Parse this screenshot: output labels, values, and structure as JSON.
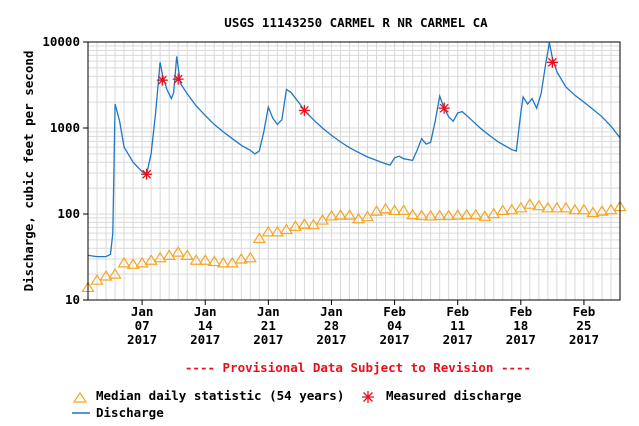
{
  "chart_data": {
    "type": "line",
    "title": "USGS 11143250 CARMEL R NR CARMEL CA",
    "ylabel": "Discharge, cubic feet per second",
    "xlabel": "",
    "y_scale": "log",
    "ylim": [
      10,
      10000
    ],
    "xlim": [
      "2017-01-01",
      "2017-03-01"
    ],
    "y_ticks": [
      {
        "value": 10,
        "label": "10"
      },
      {
        "value": 100,
        "label": "100"
      },
      {
        "value": 1000,
        "label": "1000"
      },
      {
        "value": 10000,
        "label": "10000"
      }
    ],
    "x_ticks": [
      {
        "date": "2017-01-07",
        "line1": "Jan",
        "line2": "07",
        "line3": "2017"
      },
      {
        "date": "2017-01-14",
        "line1": "Jan",
        "line2": "14",
        "line3": "2017"
      },
      {
        "date": "2017-01-21",
        "line1": "Jan",
        "line2": "21",
        "line3": "2017"
      },
      {
        "date": "2017-01-28",
        "line1": "Jan",
        "line2": "28",
        "line3": "2017"
      },
      {
        "date": "2017-02-04",
        "line1": "Feb",
        "line2": "04",
        "line3": "2017"
      },
      {
        "date": "2017-02-11",
        "line1": "Feb",
        "line2": "11",
        "line3": "2017"
      },
      {
        "date": "2017-02-18",
        "line1": "Feb",
        "line2": "18",
        "line3": "2017"
      },
      {
        "date": "2017-02-25",
        "line1": "Feb",
        "line2": "25",
        "line3": "2017"
      }
    ],
    "grid": true,
    "annotation": "---- Provisional Data Subject to Revision ----",
    "series": [
      {
        "name": "Discharge",
        "kind": "line",
        "color": "#1f77c6",
        "points": [
          [
            "2017-01-01 00:00",
            33
          ],
          [
            "2017-01-02 00:00",
            32
          ],
          [
            "2017-01-03 00:00",
            32
          ],
          [
            "2017-01-03 12:00",
            34
          ],
          [
            "2017-01-03 18:00",
            60
          ],
          [
            "2017-01-04 00:00",
            1900
          ],
          [
            "2017-01-04 12:00",
            1200
          ],
          [
            "2017-01-05 00:00",
            600
          ],
          [
            "2017-01-06 00:00",
            400
          ],
          [
            "2017-01-07 00:00",
            310
          ],
          [
            "2017-01-07 12:00",
            290
          ],
          [
            "2017-01-08 00:00",
            500
          ],
          [
            "2017-01-08 12:00",
            1500
          ],
          [
            "2017-01-09 00:00",
            5800
          ],
          [
            "2017-01-09 06:00",
            4200
          ],
          [
            "2017-01-09 18:00",
            2800
          ],
          [
            "2017-01-10 06:00",
            2200
          ],
          [
            "2017-01-10 12:00",
            2600
          ],
          [
            "2017-01-10 20:00",
            6800
          ],
          [
            "2017-01-11 06:00",
            3300
          ],
          [
            "2017-01-12 00:00",
            2500
          ],
          [
            "2017-01-13 00:00",
            1800
          ],
          [
            "2017-01-14 00:00",
            1400
          ],
          [
            "2017-01-15 00:00",
            1100
          ],
          [
            "2017-01-16 00:00",
            900
          ],
          [
            "2017-01-17 00:00",
            750
          ],
          [
            "2017-01-18 00:00",
            630
          ],
          [
            "2017-01-19 00:00",
            550
          ],
          [
            "2017-01-19 12:00",
            500
          ],
          [
            "2017-01-20 00:00",
            540
          ],
          [
            "2017-01-20 12:00",
            900
          ],
          [
            "2017-01-21 00:00",
            1750
          ],
          [
            "2017-01-21 12:00",
            1300
          ],
          [
            "2017-01-22 00:00",
            1100
          ],
          [
            "2017-01-22 12:00",
            1250
          ],
          [
            "2017-01-23 00:00",
            2800
          ],
          [
            "2017-01-23 12:00",
            2600
          ],
          [
            "2017-01-24 12:00",
            1900
          ],
          [
            "2017-01-25 00:00",
            1600
          ],
          [
            "2017-01-26 00:00",
            1250
          ],
          [
            "2017-01-27 00:00",
            1000
          ],
          [
            "2017-01-28 00:00",
            820
          ],
          [
            "2017-01-29 00:00",
            690
          ],
          [
            "2017-01-30 00:00",
            590
          ],
          [
            "2017-01-31 00:00",
            520
          ],
          [
            "2017-02-01 00:00",
            460
          ],
          [
            "2017-02-02 00:00",
            420
          ],
          [
            "2017-02-03 00:00",
            385
          ],
          [
            "2017-02-03 12:00",
            370
          ],
          [
            "2017-02-04 00:00",
            450
          ],
          [
            "2017-02-04 12:00",
            470
          ],
          [
            "2017-02-05 00:00",
            440
          ],
          [
            "2017-02-06 00:00",
            420
          ],
          [
            "2017-02-06 12:00",
            550
          ],
          [
            "2017-02-07 00:00",
            750
          ],
          [
            "2017-02-07 12:00",
            650
          ],
          [
            "2017-02-08 00:00",
            680
          ],
          [
            "2017-02-08 12:00",
            1200
          ],
          [
            "2017-02-09 00:00",
            2350
          ],
          [
            "2017-02-09 12:00",
            1700
          ],
          [
            "2017-02-10 00:00",
            1350
          ],
          [
            "2017-02-10 12:00",
            1200
          ],
          [
            "2017-02-11 00:00",
            1500
          ],
          [
            "2017-02-11 12:00",
            1550
          ],
          [
            "2017-02-12 12:00",
            1250
          ],
          [
            "2017-02-13 12:00",
            1000
          ],
          [
            "2017-02-14 12:00",
            820
          ],
          [
            "2017-02-15 12:00",
            690
          ],
          [
            "2017-02-16 12:00",
            600
          ],
          [
            "2017-02-17 00:00",
            560
          ],
          [
            "2017-02-17 12:00",
            540
          ],
          [
            "2017-02-18 00:00",
            1500
          ],
          [
            "2017-02-18 06:00",
            2300
          ],
          [
            "2017-02-18 18:00",
            1900
          ],
          [
            "2017-02-19 06:00",
            2200
          ],
          [
            "2017-02-19 18:00",
            1700
          ],
          [
            "2017-02-20 06:00",
            2500
          ],
          [
            "2017-02-20 18:00",
            5500
          ],
          [
            "2017-02-21 04:00",
            9800
          ],
          [
            "2017-02-21 12:00",
            6500
          ],
          [
            "2017-02-22 00:00",
            4500
          ],
          [
            "2017-02-23 00:00",
            3000
          ],
          [
            "2017-02-24 00:00",
            2400
          ],
          [
            "2017-02-25 00:00",
            2000
          ],
          [
            "2017-02-26 00:00",
            1650
          ],
          [
            "2017-02-27 00:00",
            1350
          ],
          [
            "2017-02-28 00:00",
            1050
          ],
          [
            "2017-03-01 00:00",
            770
          ]
        ]
      },
      {
        "name": "Median daily statistic (54 years)",
        "kind": "marker",
        "marker": "triangle",
        "color": "#f5a623",
        "points": [
          [
            "2017-01-01",
            14
          ],
          [
            "2017-01-02",
            17
          ],
          [
            "2017-01-03",
            19
          ],
          [
            "2017-01-04",
            20
          ],
          [
            "2017-01-05",
            27
          ],
          [
            "2017-01-06",
            26
          ],
          [
            "2017-01-07",
            27
          ],
          [
            "2017-01-08",
            29
          ],
          [
            "2017-01-09",
            31
          ],
          [
            "2017-01-10",
            33
          ],
          [
            "2017-01-11",
            36
          ],
          [
            "2017-01-12",
            33
          ],
          [
            "2017-01-13",
            29
          ],
          [
            "2017-01-14",
            29
          ],
          [
            "2017-01-15",
            28
          ],
          [
            "2017-01-16",
            27
          ],
          [
            "2017-01-17",
            27
          ],
          [
            "2017-01-18",
            30
          ],
          [
            "2017-01-19",
            31
          ],
          [
            "2017-01-20",
            52
          ],
          [
            "2017-01-21",
            62
          ],
          [
            "2017-01-22",
            62
          ],
          [
            "2017-01-23",
            66
          ],
          [
            "2017-01-24",
            72
          ],
          [
            "2017-01-25",
            76
          ],
          [
            "2017-01-26",
            75
          ],
          [
            "2017-01-27",
            85
          ],
          [
            "2017-01-28",
            95
          ],
          [
            "2017-01-29",
            97
          ],
          [
            "2017-01-30",
            97
          ],
          [
            "2017-01-31",
            88
          ],
          [
            "2017-02-01",
            93
          ],
          [
            "2017-02-02",
            108
          ],
          [
            "2017-02-03",
            115
          ],
          [
            "2017-02-04",
            110
          ],
          [
            "2017-02-05",
            110
          ],
          [
            "2017-02-06",
            98
          ],
          [
            "2017-02-07",
            96
          ],
          [
            "2017-02-08",
            95
          ],
          [
            "2017-02-09",
            96
          ],
          [
            "2017-02-10",
            96
          ],
          [
            "2017-02-11",
            97
          ],
          [
            "2017-02-12",
            98
          ],
          [
            "2017-02-13",
            98
          ],
          [
            "2017-02-14",
            94
          ],
          [
            "2017-02-15",
            101
          ],
          [
            "2017-02-16",
            110
          ],
          [
            "2017-02-17",
            112
          ],
          [
            "2017-02-18",
            118
          ],
          [
            "2017-02-19",
            130
          ],
          [
            "2017-02-20",
            125
          ],
          [
            "2017-02-21",
            118
          ],
          [
            "2017-02-22",
            118
          ],
          [
            "2017-02-23",
            118
          ],
          [
            "2017-02-24",
            112
          ],
          [
            "2017-02-25",
            112
          ],
          [
            "2017-02-26",
            104
          ],
          [
            "2017-02-27",
            108
          ],
          [
            "2017-02-28",
            112
          ],
          [
            "2017-03-01",
            122
          ]
        ]
      },
      {
        "name": "Measured discharge",
        "kind": "marker",
        "marker": "asterisk",
        "color": "#e8101a",
        "points": [
          [
            "2017-01-07 12:00",
            290
          ],
          [
            "2017-01-09 06:00",
            3600
          ],
          [
            "2017-01-11 00:00",
            3700
          ],
          [
            "2017-01-25 00:00",
            1600
          ],
          [
            "2017-02-09 12:00",
            1700
          ],
          [
            "2017-02-21 12:00",
            5800
          ]
        ]
      }
    ]
  },
  "legend": {
    "median_label": "Median daily statistic (54 years)",
    "measured_label": "Measured discharge",
    "discharge_label": "Discharge"
  },
  "colors": {
    "discharge": "#1f77c6",
    "median": "#f5a623",
    "measured": "#e8101a",
    "annotation": "#e8101a",
    "grid": "#d9d9d9"
  }
}
